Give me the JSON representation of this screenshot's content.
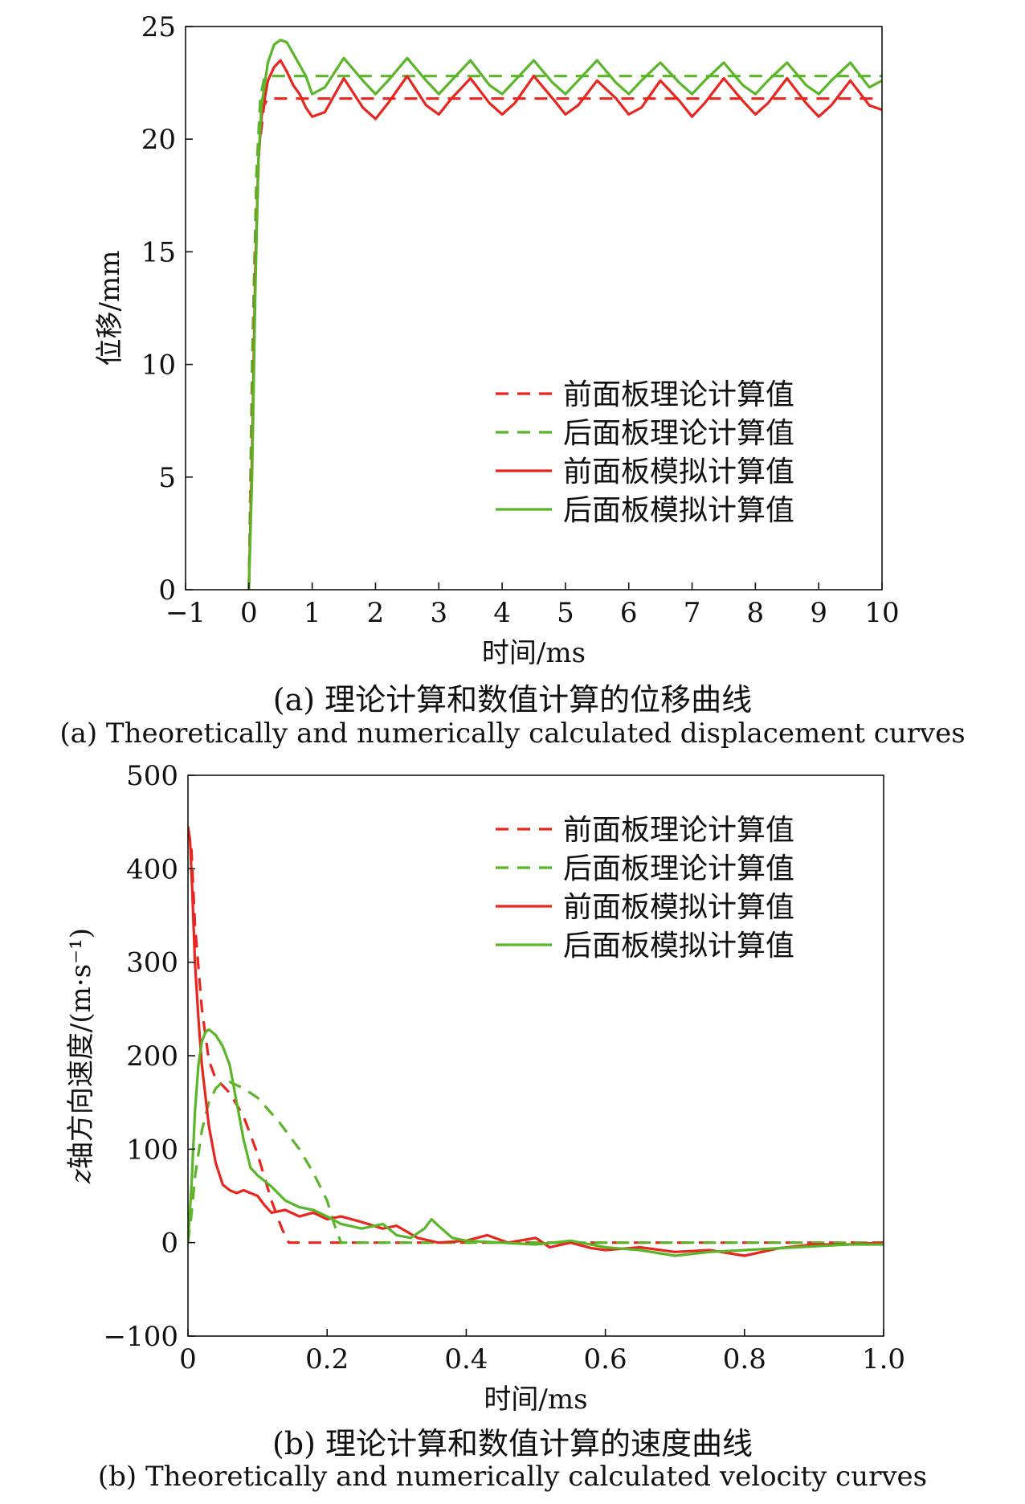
{
  "figure": {
    "caption_a_cn": "(a) 理论计算和数值计算的位移曲线",
    "caption_a_en": "(a) Theoretically and numerically calculated displacement curves",
    "caption_b_cn": "(b) 理论计算和数值计算的速度曲线",
    "caption_b_en": "(b) Theoretically and numerically calculated velocity curves"
  },
  "colors": {
    "red": "#e8251e",
    "green": "#5ab528",
    "axis": "#111111"
  },
  "chart_data": [
    {
      "type": "line",
      "xlabel": "时间/ms",
      "ylabel": "位移/mm",
      "xlim": [
        -1,
        10
      ],
      "ylim": [
        0,
        25
      ],
      "xticks": [
        -1,
        0,
        1,
        2,
        3,
        4,
        5,
        6,
        7,
        8,
        9,
        10
      ],
      "xtick_labels": [
        "−1",
        "0",
        "1",
        "2",
        "3",
        "4",
        "5",
        "6",
        "7",
        "8",
        "9",
        "10"
      ],
      "yticks": [
        0,
        5,
        10,
        15,
        20,
        25
      ],
      "ytick_labels": [
        "0",
        "5",
        "10",
        "15",
        "20",
        "25"
      ],
      "grid": false,
      "legend_position": "right-middle",
      "series": [
        {
          "name": "前面板理论计算值",
          "color": "red",
          "style": "dashed",
          "x": [
            0,
            0.08,
            0.16,
            0.24,
            0.3,
            0.5,
            1,
            2,
            3,
            4,
            5,
            6,
            7,
            8,
            9,
            10
          ],
          "y": [
            0,
            12,
            19.5,
            21.5,
            21.8,
            21.8,
            21.8,
            21.8,
            21.8,
            21.8,
            21.8,
            21.8,
            21.8,
            21.8,
            21.8,
            21.8
          ]
        },
        {
          "name": "后面板理论计算值",
          "color": "green",
          "style": "dashed",
          "x": [
            0,
            0.05,
            0.12,
            0.18,
            0.24,
            0.3,
            0.5,
            1,
            2,
            3,
            4,
            5,
            6,
            7,
            8,
            9,
            10
          ],
          "y": [
            0,
            10,
            18.5,
            21.8,
            22.7,
            22.8,
            22.8,
            22.8,
            22.8,
            22.8,
            22.8,
            22.8,
            22.8,
            22.8,
            22.8,
            22.8,
            22.8
          ]
        },
        {
          "name": "前面板模拟计算值",
          "color": "red",
          "style": "solid",
          "x": [
            0,
            0.05,
            0.1,
            0.15,
            0.2,
            0.3,
            0.4,
            0.5,
            0.6,
            0.7,
            0.8,
            0.9,
            1.0,
            1.2,
            1.5,
            1.8,
            2.0,
            2.2,
            2.5,
            2.8,
            3.0,
            3.2,
            3.5,
            3.8,
            4.0,
            4.2,
            4.5,
            4.8,
            5.0,
            5.2,
            5.5,
            5.8,
            6.0,
            6.2,
            6.5,
            6.8,
            7.0,
            7.2,
            7.5,
            7.8,
            8.0,
            8.2,
            8.5,
            8.8,
            9.0,
            9.2,
            9.5,
            9.8,
            10.0
          ],
          "y": [
            0,
            6,
            14,
            19,
            21,
            22.6,
            23.2,
            23.5,
            23.0,
            22.4,
            22.0,
            21.4,
            21.0,
            21.2,
            22.7,
            21.4,
            20.9,
            21.6,
            22.8,
            21.5,
            21.1,
            21.8,
            22.7,
            21.6,
            21.1,
            21.6,
            22.8,
            21.8,
            21.1,
            21.5,
            22.6,
            21.8,
            21.1,
            21.4,
            22.6,
            21.7,
            21.0,
            21.6,
            22.7,
            21.7,
            21.1,
            21.6,
            22.7,
            21.6,
            21.0,
            21.5,
            22.6,
            21.5,
            21.3
          ]
        },
        {
          "name": "后面板模拟计算值",
          "color": "green",
          "style": "solid",
          "x": [
            0,
            0.05,
            0.1,
            0.15,
            0.2,
            0.3,
            0.4,
            0.5,
            0.6,
            0.7,
            0.8,
            0.9,
            1.0,
            1.2,
            1.5,
            1.8,
            2.0,
            2.2,
            2.5,
            2.8,
            3.0,
            3.2,
            3.5,
            3.8,
            4.0,
            4.2,
            4.5,
            4.8,
            5.0,
            5.2,
            5.5,
            5.8,
            6.0,
            6.2,
            6.5,
            6.8,
            7.0,
            7.2,
            7.5,
            7.8,
            8.0,
            8.2,
            8.5,
            8.8,
            9.0,
            9.2,
            9.5,
            9.8,
            10.0
          ],
          "y": [
            0,
            5,
            13,
            19,
            21.5,
            23.4,
            24.2,
            24.4,
            24.3,
            23.8,
            23.3,
            22.8,
            22.0,
            22.3,
            23.6,
            22.6,
            22.0,
            22.6,
            23.6,
            22.6,
            22.0,
            22.6,
            23.5,
            22.4,
            22.0,
            22.6,
            23.5,
            22.5,
            22.0,
            22.6,
            23.5,
            22.5,
            22.0,
            22.6,
            23.4,
            22.5,
            22.0,
            22.6,
            23.4,
            22.4,
            22.0,
            22.6,
            23.4,
            22.4,
            22.0,
            22.6,
            23.4,
            22.3,
            22.6
          ]
        }
      ]
    },
    {
      "type": "line",
      "xlabel": "时间/ms",
      "ylabel": "z轴方向速度/(m·s⁻¹)",
      "ylabel_italic_prefix": "z",
      "xlim": [
        0,
        1.0
      ],
      "ylim": [
        -100,
        500
      ],
      "xticks": [
        0,
        0.2,
        0.4,
        0.6,
        0.8,
        1.0
      ],
      "xtick_labels": [
        "0",
        "0.2",
        "0.4",
        "0.6",
        "0.8",
        "1.0"
      ],
      "yticks": [
        -100,
        0,
        100,
        200,
        300,
        400,
        500
      ],
      "ytick_labels": [
        "−100",
        "0",
        "100",
        "200",
        "300",
        "400",
        "500"
      ],
      "grid": false,
      "legend_position": "top-right",
      "series": [
        {
          "name": "前面板理论计算值",
          "color": "red",
          "style": "dashed",
          "x": [
            0,
            0.005,
            0.01,
            0.02,
            0.03,
            0.04,
            0.05,
            0.06,
            0.08,
            0.1,
            0.12,
            0.135,
            0.145,
            0.2,
            0.4,
            0.6,
            0.8,
            1.0
          ],
          "y": [
            445,
            420,
            340,
            250,
            195,
            175,
            168,
            160,
            135,
            95,
            45,
            15,
            0,
            0,
            0,
            0,
            0,
            0
          ]
        },
        {
          "name": "后面板理论计算值",
          "color": "green",
          "style": "dashed",
          "x": [
            0,
            0.005,
            0.01,
            0.02,
            0.03,
            0.04,
            0.05,
            0.06,
            0.08,
            0.1,
            0.13,
            0.16,
            0.18,
            0.2,
            0.21,
            0.22,
            0.3,
            0.5,
            0.7,
            1.0
          ],
          "y": [
            0,
            30,
            70,
            120,
            150,
            165,
            172,
            172,
            165,
            155,
            130,
            100,
            75,
            45,
            20,
            0,
            0,
            0,
            0,
            0
          ]
        },
        {
          "name": "前面板模拟计算值",
          "color": "red",
          "style": "solid",
          "x": [
            0,
            0.003,
            0.006,
            0.01,
            0.015,
            0.02,
            0.03,
            0.04,
            0.05,
            0.06,
            0.07,
            0.08,
            0.09,
            0.1,
            0.11,
            0.12,
            0.14,
            0.16,
            0.18,
            0.2,
            0.22,
            0.25,
            0.28,
            0.3,
            0.33,
            0.36,
            0.4,
            0.43,
            0.46,
            0.5,
            0.52,
            0.55,
            0.58,
            0.6,
            0.65,
            0.7,
            0.75,
            0.8,
            0.85,
            0.9,
            0.95,
            1.0
          ],
          "y": [
            445,
            430,
            380,
            300,
            240,
            190,
            125,
            85,
            62,
            56,
            53,
            56,
            53,
            50,
            40,
            32,
            35,
            28,
            32,
            25,
            28,
            22,
            15,
            18,
            5,
            0,
            2,
            8,
            0,
            5,
            -5,
            0,
            -6,
            -8,
            -5,
            -10,
            -8,
            -14,
            -6,
            -2,
            -2,
            0
          ]
        },
        {
          "name": "后面板模拟计算值",
          "color": "green",
          "style": "solid",
          "x": [
            0,
            0.005,
            0.01,
            0.015,
            0.02,
            0.025,
            0.03,
            0.04,
            0.05,
            0.06,
            0.07,
            0.08,
            0.09,
            0.1,
            0.12,
            0.14,
            0.16,
            0.18,
            0.2,
            0.22,
            0.25,
            0.28,
            0.3,
            0.32,
            0.34,
            0.35,
            0.36,
            0.38,
            0.4,
            0.45,
            0.5,
            0.55,
            0.6,
            0.65,
            0.7,
            0.75,
            0.8,
            0.85,
            0.9,
            0.95,
            1.0
          ],
          "y": [
            0,
            60,
            140,
            190,
            215,
            225,
            228,
            222,
            210,
            190,
            150,
            110,
            80,
            72,
            60,
            45,
            38,
            35,
            28,
            20,
            15,
            20,
            8,
            5,
            15,
            25,
            18,
            5,
            2,
            0,
            -2,
            2,
            -5,
            -8,
            -14,
            -10,
            -8,
            -6,
            -4,
            -2,
            -2
          ]
        }
      ]
    }
  ]
}
